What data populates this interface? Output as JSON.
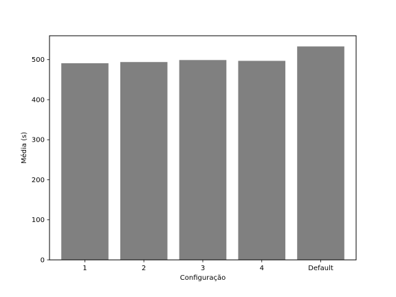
{
  "chart_data": {
    "type": "bar",
    "categories": [
      "1",
      "2",
      "3",
      "4",
      "Default"
    ],
    "values": [
      491,
      494,
      499,
      497,
      533
    ],
    "title": "",
    "xlabel": "Configuração",
    "ylabel": "Média (s)",
    "ylim": [
      0,
      559.65
    ],
    "yticks": [
      0,
      100,
      200,
      300,
      400,
      500
    ],
    "grid": false,
    "bar_color": "#808080"
  }
}
